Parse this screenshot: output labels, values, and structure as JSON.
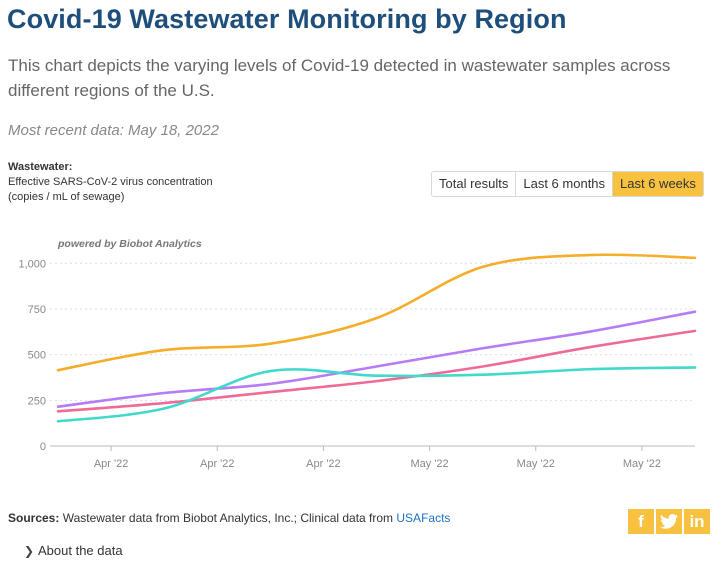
{
  "header": {
    "title": "Covid-19 Wastewater Monitoring by Region",
    "subtitle": "This chart depicts the varying levels of Covid-19 detected in wastewater samples across different regions of the U.S.",
    "recent": "Most recent data: May 18, 2022"
  },
  "yaxis_info": {
    "heading": "Wastewater:",
    "line1": "Effective SARS-CoV-2 virus concentration",
    "line2": "(copies / mL of sewage)"
  },
  "range_toggle": {
    "options": [
      "Total results",
      "Last 6 months",
      "Last 6 weeks"
    ],
    "selected": "Last 6 weeks"
  },
  "chart_data": {
    "type": "line",
    "title": "",
    "xlabel": "",
    "ylabel": "",
    "watermark": "powered by Biobot Analytics",
    "ylim": [
      0,
      1100
    ],
    "yticks": [
      0,
      250,
      500,
      750,
      1000
    ],
    "ytick_labels": [
      "0",
      "250",
      "500",
      "750",
      "1,000"
    ],
    "x": [
      0,
      1,
      2,
      3,
      4,
      5,
      6
    ],
    "xticks": [
      {
        "pos": 0.5,
        "label": "Apr '22"
      },
      {
        "pos": 1.5,
        "label": "Apr '22"
      },
      {
        "pos": 2.5,
        "label": "Apr '22"
      },
      {
        "pos": 3.5,
        "label": "May '22"
      },
      {
        "pos": 4.5,
        "label": "May '22"
      },
      {
        "pos": 5.5,
        "label": "May '22"
      }
    ],
    "series": [
      {
        "name": "Orange region",
        "color": "#f5ad2a",
        "values": [
          415,
          525,
          560,
          700,
          980,
          1045,
          1030
        ]
      },
      {
        "name": "Purple region",
        "color": "#b57cf5",
        "values": [
          215,
          290,
          340,
          435,
          535,
          625,
          735
        ]
      },
      {
        "name": "Pink region",
        "color": "#ee6b99",
        "values": [
          190,
          235,
          295,
          355,
          435,
          540,
          630
        ]
      },
      {
        "name": "Teal region",
        "color": "#41d9cc",
        "values": [
          135,
          205,
          410,
          385,
          390,
          420,
          430
        ]
      }
    ]
  },
  "footer": {
    "sources_label": "Sources:",
    "sources_text": " Wastewater data from Biobot Analytics, Inc.; Clinical data from ",
    "sources_link": "USAFacts",
    "about_label": "About the data"
  },
  "social": {
    "facebook": "f",
    "twitter": "twitter-icon",
    "linkedin": "in"
  }
}
